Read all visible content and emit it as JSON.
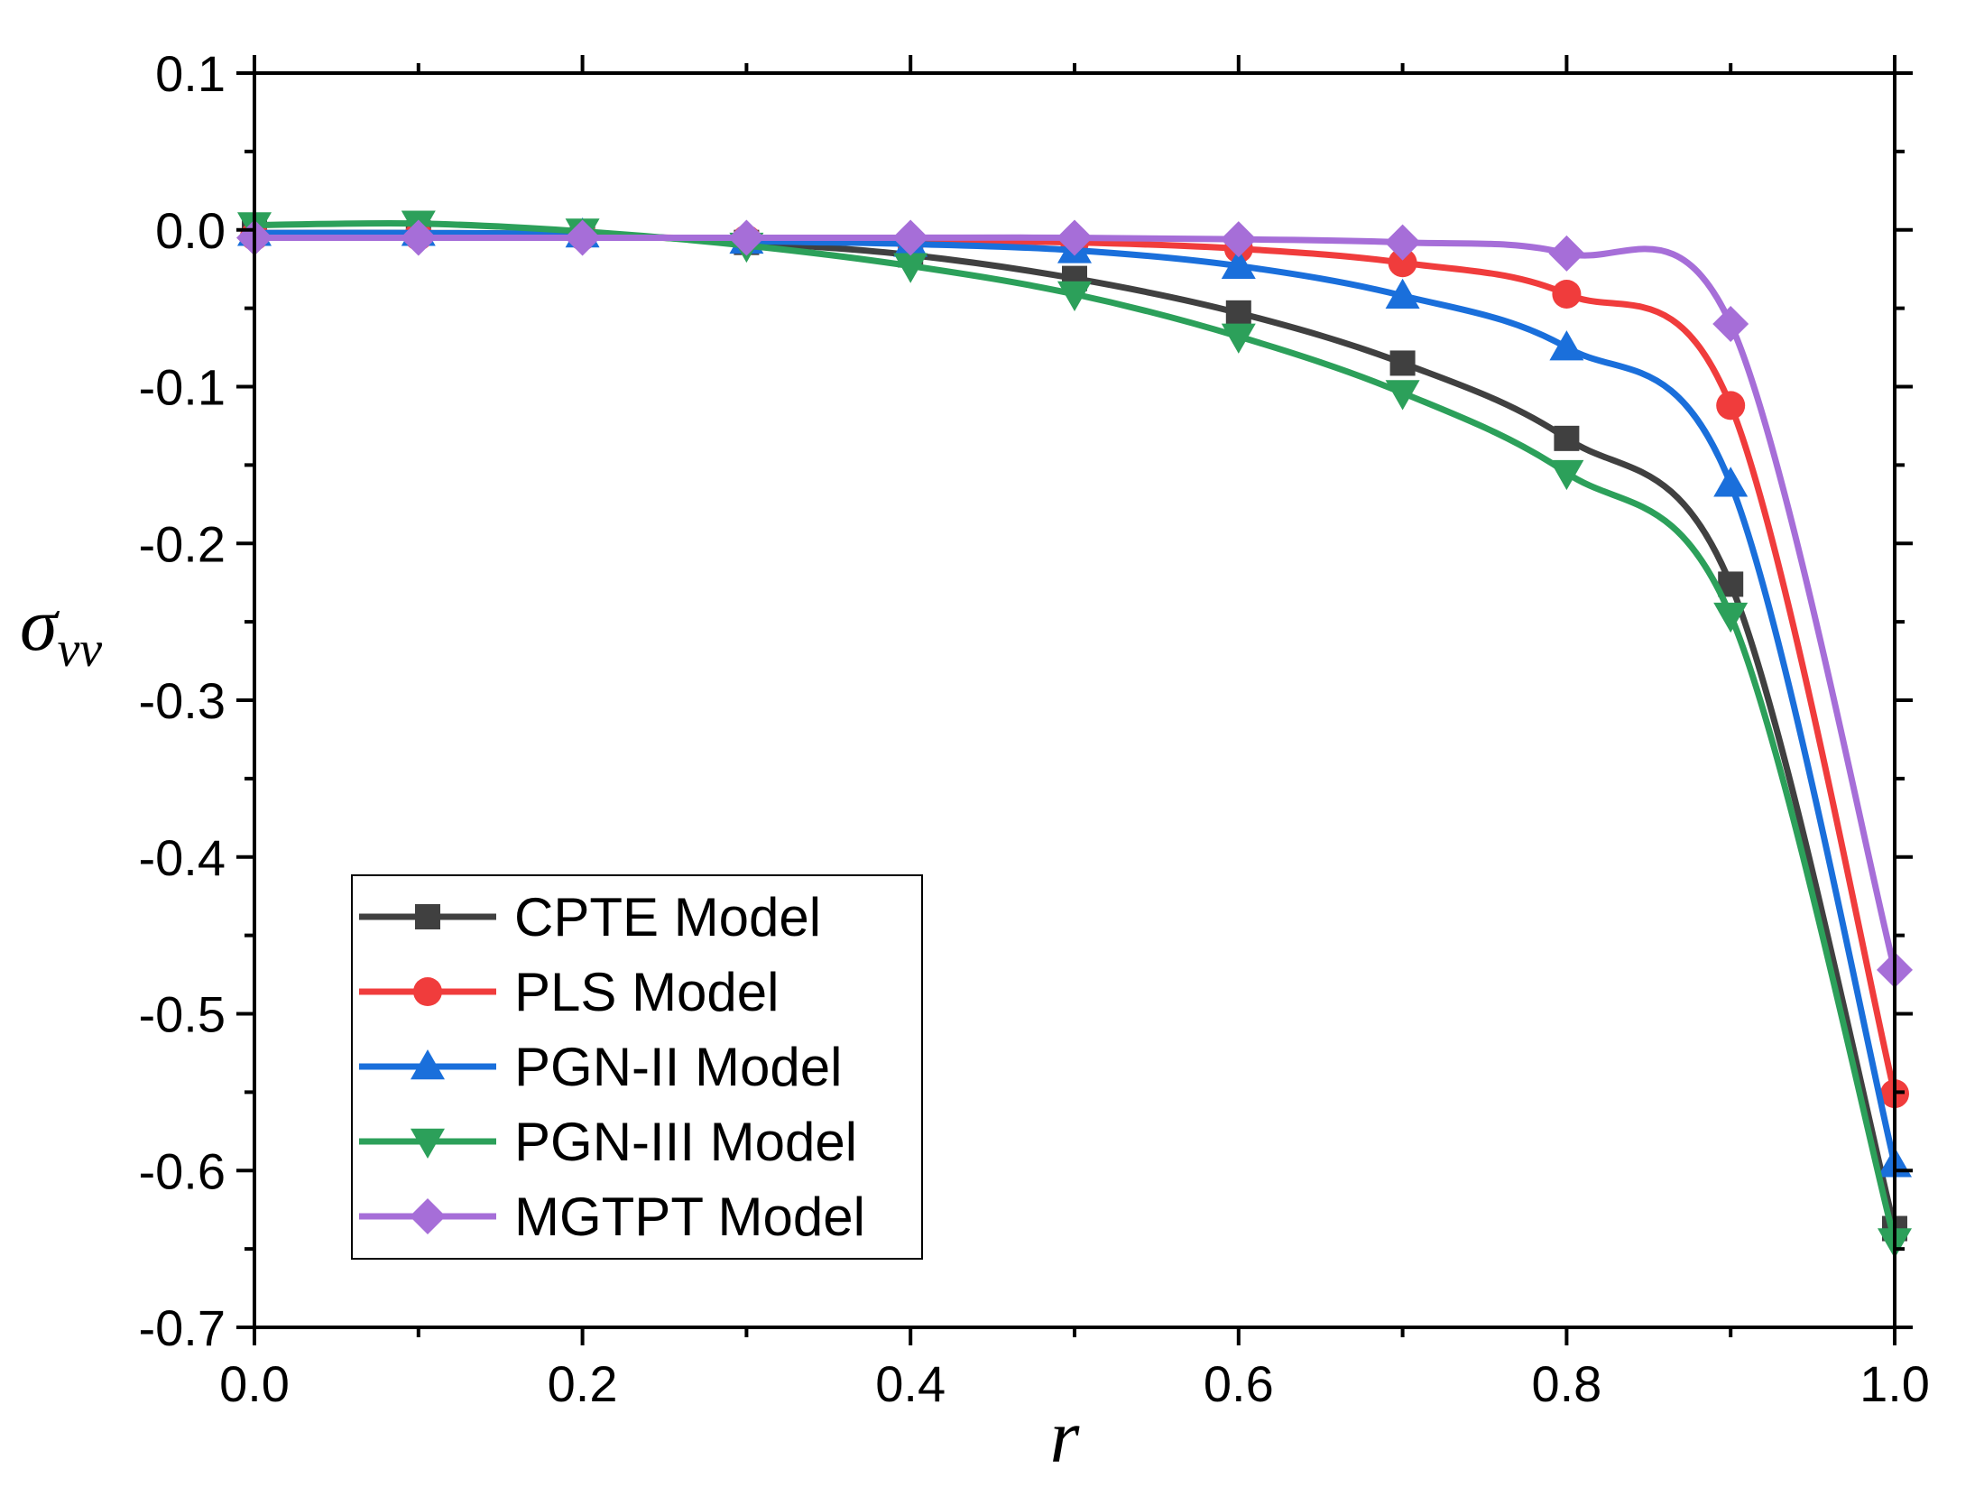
{
  "chart_data": {
    "type": "line",
    "title": "",
    "xlabel": "r",
    "ylabel": {
      "symbol": "σ",
      "subscript": "vv"
    },
    "xlim": [
      0.0,
      1.0
    ],
    "ylim": [
      -0.7,
      0.1
    ],
    "x_ticks": [
      0.0,
      0.2,
      0.4,
      0.6,
      0.8,
      1.0
    ],
    "x_tick_labels": [
      "0.0",
      "0.2",
      "0.4",
      "0.6",
      "0.8",
      "1.0"
    ],
    "y_ticks": [
      0.1,
      0.0,
      -0.1,
      -0.2,
      -0.3,
      -0.4,
      -0.5,
      -0.6,
      -0.7
    ],
    "y_tick_labels": [
      "0.1",
      "0.0",
      "-0.1",
      "-0.2",
      "-0.3",
      "-0.4",
      "-0.5",
      "-0.6",
      "-0.7"
    ],
    "grid": false,
    "legend_position": "bottom-left",
    "x": [
      0.0,
      0.1,
      0.2,
      0.3,
      0.4,
      0.5,
      0.6,
      0.7,
      0.8,
      0.9,
      1.0
    ],
    "series": [
      {
        "name": "CPTE Model",
        "color": "#404040",
        "marker": "square",
        "values": [
          -0.002,
          -0.002,
          -0.003,
          -0.008,
          -0.016,
          -0.031,
          -0.053,
          -0.085,
          -0.133,
          -0.226,
          -0.637
        ]
      },
      {
        "name": "PLS Model",
        "color": "#f03c3c",
        "marker": "circle",
        "values": [
          -0.004,
          -0.004,
          -0.004,
          -0.006,
          -0.007,
          -0.008,
          -0.012,
          -0.021,
          -0.041,
          -0.112,
          -0.551
        ]
      },
      {
        "name": "PGN-II Model",
        "color": "#1a6fdb",
        "marker": "triangle-up",
        "values": [
          -0.002,
          -0.002,
          -0.003,
          -0.007,
          -0.009,
          -0.013,
          -0.023,
          -0.042,
          -0.075,
          -0.162,
          -0.596
        ]
      },
      {
        "name": "PGN-III Model",
        "color": "#2ca05a",
        "marker": "triangle-down",
        "values": [
          0.003,
          0.004,
          -0.001,
          -0.01,
          -0.023,
          -0.041,
          -0.068,
          -0.104,
          -0.155,
          -0.246,
          -0.645
        ]
      },
      {
        "name": "MGTPT Model",
        "color": "#a66ed8",
        "marker": "diamond",
        "values": [
          -0.005,
          -0.005,
          -0.005,
          -0.005,
          -0.005,
          -0.005,
          -0.006,
          -0.008,
          -0.015,
          -0.06,
          -0.472
        ]
      }
    ]
  }
}
